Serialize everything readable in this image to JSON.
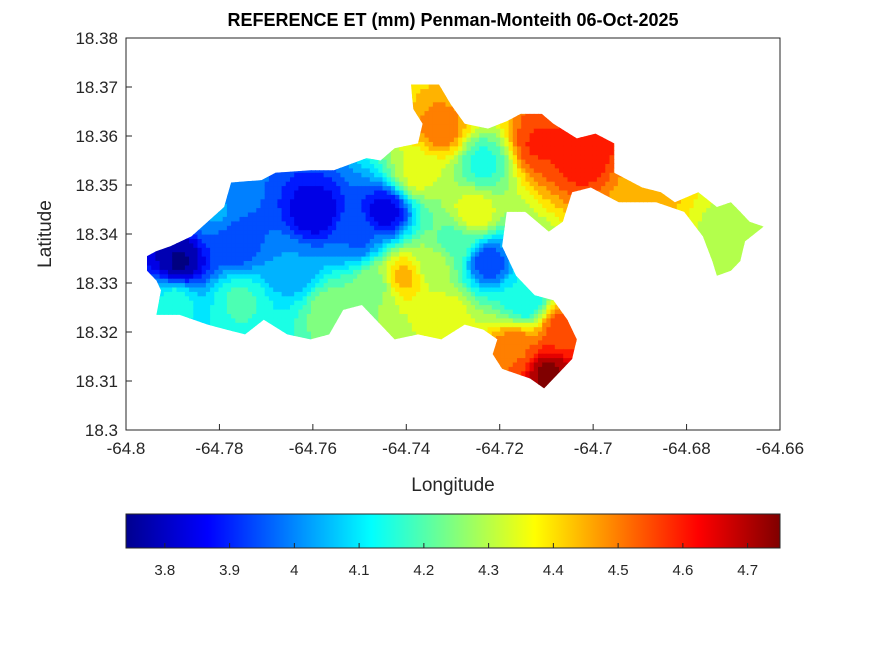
{
  "chart_data": {
    "type": "heatmap",
    "title": "REFERENCE ET (mm) Penman-Monteith 06-Oct-2025",
    "xlabel": "Longitude",
    "ylabel": "Latitude",
    "xlim": [
      -64.8,
      -64.66
    ],
    "ylim": [
      18.3,
      18.38
    ],
    "x_ticks": [
      "-64.8",
      "-64.78",
      "-64.76",
      "-64.74",
      "-64.72",
      "-64.7",
      "-64.68",
      "-64.66"
    ],
    "y_ticks": [
      "18.3",
      "18.31",
      "18.32",
      "18.33",
      "18.34",
      "18.35",
      "18.36",
      "18.37",
      "18.38"
    ],
    "colormap": "jet",
    "colorbar": {
      "range": [
        3.74,
        4.75
      ],
      "ticks": [
        "3.8",
        "3.9",
        "4",
        "4.1",
        "4.2",
        "4.3",
        "4.4",
        "4.5",
        "4.6",
        "4.7"
      ],
      "placement": "bottom"
    },
    "grid": false,
    "outline_lonlat": [
      [
        -64.7935,
        18.3365
      ],
      [
        -64.7905,
        18.3375
      ],
      [
        -64.786,
        18.3395
      ],
      [
        -64.7825,
        18.3425
      ],
      [
        -64.779,
        18.3455
      ],
      [
        -64.7775,
        18.3505
      ],
      [
        -64.771,
        18.351
      ],
      [
        -64.768,
        18.3525
      ],
      [
        -64.7605,
        18.353
      ],
      [
        -64.7555,
        18.353
      ],
      [
        -64.7485,
        18.3555
      ],
      [
        -64.7455,
        18.355
      ],
      [
        -64.7425,
        18.3575
      ],
      [
        -64.7375,
        18.3585
      ],
      [
        -64.7365,
        18.3625
      ],
      [
        -64.7385,
        18.3655
      ],
      [
        -64.739,
        18.3705
      ],
      [
        -64.733,
        18.3705
      ],
      [
        -64.7305,
        18.3665
      ],
      [
        -64.7275,
        18.3625
      ],
      [
        -64.7225,
        18.3615
      ],
      [
        -64.7185,
        18.363
      ],
      [
        -64.7155,
        18.3645
      ],
      [
        -64.711,
        18.3645
      ],
      [
        -64.7085,
        18.3625
      ],
      [
        -64.7035,
        18.3595
      ],
      [
        -64.6995,
        18.3605
      ],
      [
        -64.6955,
        18.3585
      ],
      [
        -64.6955,
        18.3525
      ],
      [
        -64.6895,
        18.3495
      ],
      [
        -64.6855,
        18.3485
      ],
      [
        -64.6825,
        18.3465
      ],
      [
        -64.6775,
        18.3485
      ],
      [
        -64.6735,
        18.3455
      ],
      [
        -64.6705,
        18.3465
      ],
      [
        -64.6685,
        18.3445
      ],
      [
        -64.6665,
        18.3425
      ],
      [
        -64.6635,
        18.3415
      ],
      [
        -64.6675,
        18.3385
      ],
      [
        -64.6685,
        18.3345
      ],
      [
        -64.6705,
        18.3325
      ],
      [
        -64.6735,
        18.3315
      ],
      [
        -64.6745,
        18.3345
      ],
      [
        -64.6765,
        18.3395
      ],
      [
        -64.6805,
        18.3445
      ],
      [
        -64.6865,
        18.3465
      ],
      [
        -64.6945,
        18.3465
      ],
      [
        -64.7005,
        18.3495
      ],
      [
        -64.7045,
        18.3485
      ],
      [
        -64.7065,
        18.3425
      ],
      [
        -64.7095,
        18.3405
      ],
      [
        -64.7145,
        18.3445
      ],
      [
        -64.7185,
        18.3445
      ],
      [
        -64.7195,
        18.3375
      ],
      [
        -64.7165,
        18.3315
      ],
      [
        -64.7125,
        18.3275
      ],
      [
        -64.7085,
        18.3265
      ],
      [
        -64.7055,
        18.3225
      ],
      [
        -64.7035,
        18.3185
      ],
      [
        -64.7045,
        18.3145
      ],
      [
        -64.7075,
        18.3115
      ],
      [
        -64.7105,
        18.3085
      ],
      [
        -64.7135,
        18.3105
      ],
      [
        -64.7195,
        18.3125
      ],
      [
        -64.7215,
        18.3155
      ],
      [
        -64.7205,
        18.3185
      ],
      [
        -64.7235,
        18.3205
      ],
      [
        -64.7275,
        18.3215
      ],
      [
        -64.7325,
        18.3185
      ],
      [
        -64.7375,
        18.3195
      ],
      [
        -64.7425,
        18.3185
      ],
      [
        -64.7455,
        18.3215
      ],
      [
        -64.7495,
        18.3255
      ],
      [
        -64.7535,
        18.3245
      ],
      [
        -64.7565,
        18.3195
      ],
      [
        -64.7605,
        18.3185
      ],
      [
        -64.7655,
        18.3195
      ],
      [
        -64.7705,
        18.3225
      ],
      [
        -64.7745,
        18.3195
      ],
      [
        -64.7785,
        18.3205
      ],
      [
        -64.7825,
        18.3215
      ],
      [
        -64.7855,
        18.3225
      ],
      [
        -64.7885,
        18.3235
      ],
      [
        -64.7935,
        18.3235
      ],
      [
        -64.7925,
        18.3285
      ],
      [
        -64.7935,
        18.3305
      ],
      [
        -64.7955,
        18.3325
      ],
      [
        -64.7955,
        18.3355
      ]
    ],
    "field_anchors": [
      {
        "lon": -64.789,
        "lat": 18.334,
        "value": 3.76
      },
      {
        "lon": -64.777,
        "lat": 18.338,
        "value": 3.92
      },
      {
        "lon": -64.76,
        "lat": 18.344,
        "value": 3.82
      },
      {
        "lon": -64.745,
        "lat": 18.344,
        "value": 3.84
      },
      {
        "lon": -64.751,
        "lat": 18.339,
        "value": 3.96
      },
      {
        "lon": -64.765,
        "lat": 18.333,
        "value": 4.02
      },
      {
        "lon": -64.781,
        "lat": 18.344,
        "value": 4.02
      },
      {
        "lon": -64.776,
        "lat": 18.326,
        "value": 4.18
      },
      {
        "lon": -64.79,
        "lat": 18.326,
        "value": 4.14
      },
      {
        "lon": -64.756,
        "lat": 18.324,
        "value": 4.26
      },
      {
        "lon": -64.747,
        "lat": 18.329,
        "value": 4.26
      },
      {
        "lon": -64.741,
        "lat": 18.331,
        "value": 4.44
      },
      {
        "lon": -64.735,
        "lat": 18.333,
        "value": 4.3
      },
      {
        "lon": -64.73,
        "lat": 18.338,
        "value": 4.2
      },
      {
        "lon": -64.723,
        "lat": 18.334,
        "value": 3.93
      },
      {
        "lon": -64.726,
        "lat": 18.344,
        "value": 4.36
      },
      {
        "lon": -64.738,
        "lat": 18.352,
        "value": 4.34
      },
      {
        "lon": -64.733,
        "lat": 18.361,
        "value": 4.5
      },
      {
        "lon": -64.724,
        "lat": 18.354,
        "value": 4.15
      },
      {
        "lon": -64.712,
        "lat": 18.358,
        "value": 4.58
      },
      {
        "lon": -64.703,
        "lat": 18.356,
        "value": 4.62
      },
      {
        "lon": -64.69,
        "lat": 18.348,
        "value": 4.45
      },
      {
        "lon": -64.671,
        "lat": 18.339,
        "value": 4.3
      },
      {
        "lon": -64.715,
        "lat": 18.326,
        "value": 4.12
      },
      {
        "lon": -64.707,
        "lat": 18.32,
        "value": 4.55
      },
      {
        "lon": -64.71,
        "lat": 18.311,
        "value": 4.74
      },
      {
        "lon": -64.717,
        "lat": 18.316,
        "value": 4.52
      },
      {
        "lon": -64.732,
        "lat": 18.323,
        "value": 4.35
      }
    ]
  }
}
